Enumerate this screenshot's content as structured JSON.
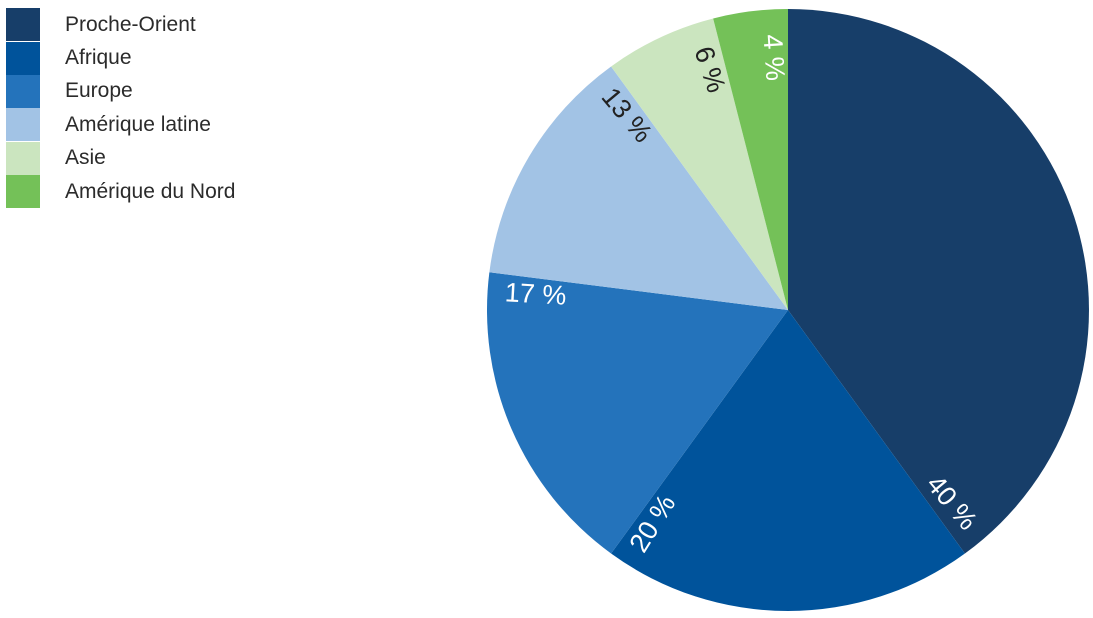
{
  "chart_data": {
    "type": "pie",
    "slices": [
      {
        "label": "Proche-Orient",
        "value": 40,
        "value_label": "40 %",
        "color": "#173e69",
        "label_color": "#ffffff"
      },
      {
        "label": "Afrique",
        "value": 20,
        "value_label": "20 %",
        "color": "#00539b",
        "label_color": "#ffffff"
      },
      {
        "label": "Europe",
        "value": 17,
        "value_label": "17 %",
        "color": "#2473bb",
        "label_color": "#ffffff"
      },
      {
        "label": "Amérique latine",
        "value": 13,
        "value_label": "13 %",
        "color": "#a2c3e5",
        "label_color": "#222222"
      },
      {
        "label": "Asie",
        "value": 6,
        "value_label": "6 %",
        "color": "#cbe5bf",
        "label_color": "#222222"
      },
      {
        "label": "Amérique du Nord",
        "value": 4,
        "value_label": "4 %",
        "color": "#74c158",
        "label_color": "#ffffff"
      }
    ],
    "start": "top",
    "direction": "clockwise",
    "legend_position": "top-left"
  }
}
